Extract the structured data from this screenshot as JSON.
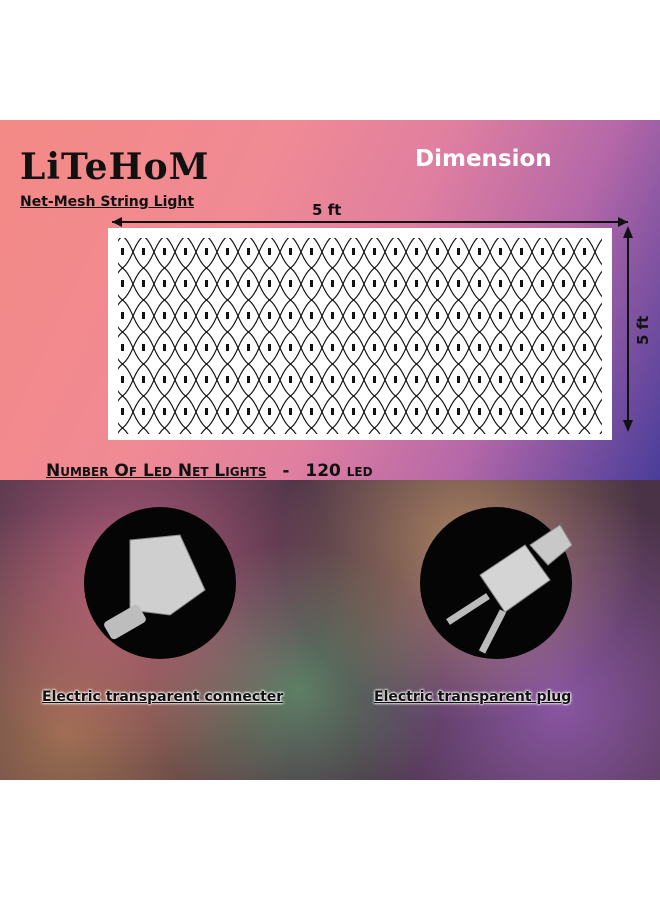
{
  "brand": {
    "name": "LiTeHoM",
    "tagline": "Net-Mesh String Light"
  },
  "heading": "Dimension",
  "dimensions": {
    "width": "5 ft",
    "height": "5 ft"
  },
  "led_count": {
    "label": "Number Of Led Net Lights",
    "separator": "-",
    "value": "120",
    "unit": "LED"
  },
  "accessories": [
    {
      "caption": "Electric transparent connecter"
    },
    {
      "caption": "Electric transparent plug"
    }
  ]
}
